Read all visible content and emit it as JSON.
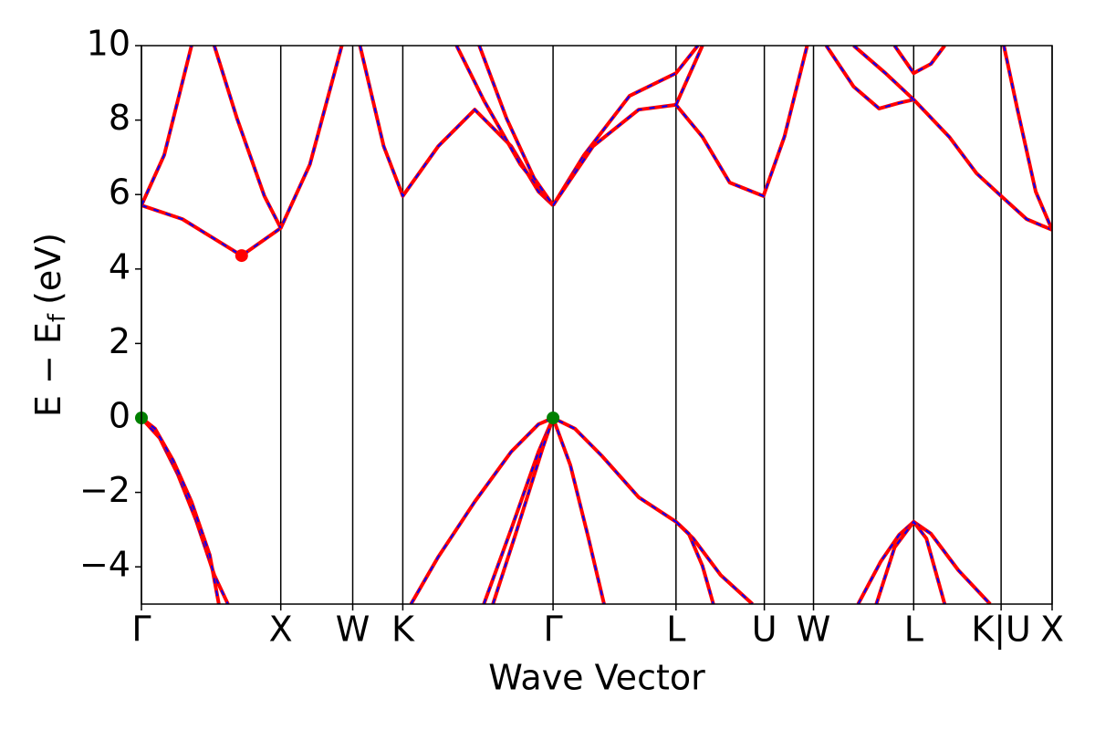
{
  "chart_data": {
    "type": "line",
    "xlabel": "Wave Vector",
    "ylabel": {
      "text": "E − E",
      "subscript": "f",
      "unit": "(eV)"
    },
    "xlim": [
      0,
      1
    ],
    "ylim": [
      -5,
      10
    ],
    "xticks": [
      {
        "value": 0,
        "label": "Γ"
      },
      {
        "value": 0.153,
        "label": "X"
      },
      {
        "value": 0.232,
        "label": "W"
      },
      {
        "value": 0.287,
        "label": "K"
      },
      {
        "value": 0.452,
        "label": "Γ"
      },
      {
        "value": 0.587,
        "label": "L"
      },
      {
        "value": 0.684,
        "label": "U"
      },
      {
        "value": 0.738,
        "label": "W"
      },
      {
        "value": 0.848,
        "label": "L"
      },
      {
        "value": 0.944,
        "label": "K|U"
      },
      {
        "value": 1,
        "label": "X"
      }
    ],
    "yticks": [
      {
        "value": -4,
        "label": "−4"
      },
      {
        "value": -2,
        "label": "−2"
      },
      0,
      2,
      4,
      6,
      8,
      10
    ],
    "vlines": true,
    "dash_color": "#0000ff",
    "series": [
      {
        "color": "#ff0000",
        "x": [
          0,
          0.02,
          0.04,
          0.06,
          0.08,
          0.095
        ],
        "values": [
          0,
          -0.54,
          -1.52,
          -2.75,
          -4.22,
          -5
        ]
      },
      {
        "color": "#ff0000",
        "x": [
          0,
          0.015,
          0.035,
          0.055,
          0.075,
          0.085
        ],
        "values": [
          0,
          -0.29,
          -1.15,
          -2.25,
          -3.68,
          -5
        ]
      },
      {
        "color": "#ff0000",
        "x": [
          0.296,
          0.326,
          0.366,
          0.406,
          0.436,
          0.452,
          0.476,
          0.506,
          0.546,
          0.587,
          0.606,
          0.636,
          0.671
        ],
        "values": [
          -5,
          -3.73,
          -2.25,
          -0.91,
          -0.17,
          0,
          -0.29,
          -1.03,
          -2.13,
          -2.79,
          -3.24,
          -4.22,
          -5
        ]
      },
      {
        "color": "#ff0000",
        "x": [
          0.587,
          0.601,
          0.616,
          0.628
        ],
        "values": [
          -2.79,
          -3.11,
          -3.97,
          -5
        ]
      },
      {
        "color": "#ff0000",
        "x": [
          0.376,
          0.406,
          0.436,
          0.452
        ],
        "values": [
          -5,
          -2.99,
          -0.91,
          0
        ]
      },
      {
        "color": "#ff0000",
        "x": [
          0.386,
          0.411,
          0.441,
          0.452
        ],
        "values": [
          -5,
          -3.11,
          -0.78,
          0
        ]
      },
      {
        "color": "#ff0000",
        "x": [
          0.452,
          0.471,
          0.491,
          0.508
        ],
        "values": [
          0,
          -1.27,
          -3.24,
          -5
        ]
      },
      {
        "color": "#ff0000",
        "x": [
          0.787,
          0.812,
          0.832,
          0.848,
          0.867,
          0.897,
          0.932
        ],
        "values": [
          -5,
          -3.85,
          -3.14,
          -2.79,
          -3.11,
          -4.09,
          -5
        ]
      },
      {
        "color": "#ff0000",
        "x": [
          0.807,
          0.827,
          0.848,
          0.862,
          0.882
        ],
        "values": [
          -5,
          -3.48,
          -2.79,
          -3.24,
          -5
        ]
      },
      {
        "color": "#ff0000",
        "x": [
          0,
          0.045,
          0.11,
          0.153,
          0.185,
          0.22
        ],
        "values": [
          5.71,
          5.34,
          4.36,
          5.1,
          6.81,
          10
        ]
      },
      {
        "color": "#ff0000",
        "x": [
          0,
          0.025,
          0.055
        ],
        "values": [
          5.71,
          7.06,
          10
        ]
      },
      {
        "color": "#ff0000",
        "x": [
          0.08,
          0.105,
          0.135,
          0.153
        ],
        "values": [
          10,
          8.04,
          5.96,
          5.1
        ]
      },
      {
        "color": "#ff0000",
        "x": [
          0.24,
          0.266,
          0.287,
          0.326,
          0.366,
          0.406,
          0.436,
          0.452
        ],
        "values": [
          10,
          7.3,
          5.96,
          7.3,
          8.28,
          7.3,
          6.08,
          5.71
        ]
      },
      {
        "color": "#ff0000",
        "x": [
          0.346,
          0.376,
          0.416,
          0.452
        ],
        "values": [
          10,
          8.53,
          6.81,
          5.71
        ]
      },
      {
        "color": "#ff0000",
        "x": [
          0.371,
          0.401,
          0.431,
          0.452
        ],
        "values": [
          10,
          8.04,
          6.45,
          5.71
        ]
      },
      {
        "color": "#ff0000",
        "x": [
          0.452,
          0.486,
          0.536,
          0.587,
          0.611
        ],
        "values": [
          5.71,
          7.06,
          8.65,
          9.26,
          10
        ]
      },
      {
        "color": "#ff0000",
        "x": [
          0.452,
          0.496,
          0.546,
          0.587,
          0.616,
          0.646,
          0.683,
          0.706,
          0.731
        ],
        "values": [
          5.71,
          7.3,
          8.28,
          8.41,
          7.55,
          6.32,
          5.96,
          7.55,
          10
        ]
      },
      {
        "color": "#ff0000",
        "x": [
          0.587,
          0.616
        ],
        "values": [
          8.41,
          10
        ]
      },
      {
        "color": "#ff0000",
        "x": [
          0.752,
          0.782,
          0.81,
          0.832,
          0.848,
          0.887,
          0.917,
          0.944,
          0.972,
          1
        ],
        "values": [
          10,
          8.9,
          8.31,
          8.46,
          8.55,
          7.55,
          6.57,
          5.96,
          5.34,
          5.05
        ]
      },
      {
        "color": "#ff0000",
        "x": [
          0.782,
          0.817,
          0.848
        ],
        "values": [
          10,
          9.26,
          8.55
        ]
      },
      {
        "color": "#ff0000",
        "x": [
          0.827,
          0.848,
          0.867,
          0.882
        ],
        "values": [
          10,
          9.26,
          9.51,
          10
        ]
      },
      {
        "color": "#ff0000",
        "x": [
          0.947,
          0.962,
          0.982,
          1
        ],
        "values": [
          10,
          8.28,
          6.08,
          5.05
        ]
      }
    ],
    "markers": [
      {
        "x": 0.11,
        "y": 4.36,
        "color": "#ff0000"
      },
      {
        "x": 0,
        "y": 0,
        "color": "#008000"
      },
      {
        "x": 0.452,
        "y": 0,
        "color": "#008000"
      }
    ]
  }
}
